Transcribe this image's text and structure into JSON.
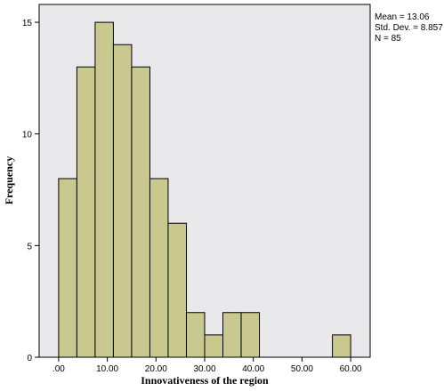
{
  "chart_data": {
    "type": "bar",
    "subtype": "histogram",
    "bin_width": 3.75,
    "bins": [
      {
        "x0": 0.0,
        "x1": 3.75,
        "count": 8
      },
      {
        "x0": 3.75,
        "x1": 7.5,
        "count": 13
      },
      {
        "x0": 7.5,
        "x1": 11.25,
        "count": 15
      },
      {
        "x0": 11.25,
        "x1": 15.0,
        "count": 14
      },
      {
        "x0": 15.0,
        "x1": 18.75,
        "count": 13
      },
      {
        "x0": 18.75,
        "x1": 22.5,
        "count": 8
      },
      {
        "x0": 22.5,
        "x1": 26.25,
        "count": 6
      },
      {
        "x0": 26.25,
        "x1": 30.0,
        "count": 2
      },
      {
        "x0": 30.0,
        "x1": 33.75,
        "count": 1
      },
      {
        "x0": 33.75,
        "x1": 37.5,
        "count": 2
      },
      {
        "x0": 37.5,
        "x1": 41.25,
        "count": 2
      },
      {
        "x0": 56.25,
        "x1": 60.0,
        "count": 1
      }
    ],
    "xlabel": "Innovativeness of the region",
    "ylabel": "Frequency",
    "xlim": [
      -4,
      64
    ],
    "ylim": [
      0,
      15.8
    ],
    "xticks": [
      0,
      10,
      20,
      30,
      40,
      50,
      60
    ],
    "xtick_labels": [
      ".00",
      "10.00",
      "20.00",
      "30.00",
      "40.00",
      "50.00",
      "60.00"
    ],
    "yticks": [
      0,
      5,
      10,
      15
    ],
    "ytick_labels": [
      "0",
      "5",
      "10",
      "15"
    ],
    "grid": false,
    "colors": {
      "bar_fill": "#c9c98f",
      "bar_stroke": "#000000",
      "plot_bg": "#e9e9ec"
    },
    "stats": [
      "Mean = 13.06",
      "Std. Dev. = 8.857",
      "N = 85"
    ]
  }
}
